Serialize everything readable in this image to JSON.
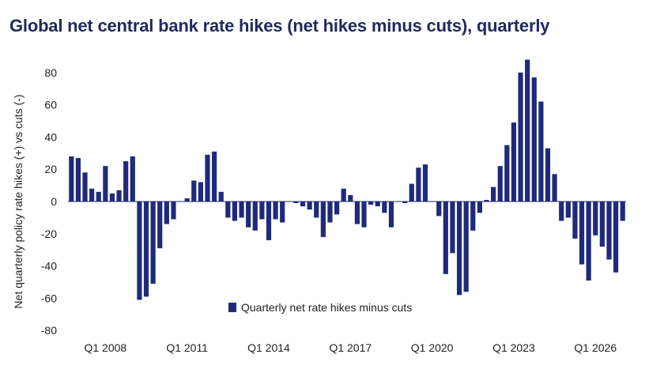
{
  "chart_data": {
    "type": "bar",
    "title": "Global net central bank rate hikes (net hikes minus cuts), quarterly",
    "ylabel": "Net quarterly policy rate hikes (+) vs cuts (-)",
    "xlabel": "",
    "ylim": [
      -80,
      90
    ],
    "yticks": [
      80,
      60,
      40,
      20,
      0,
      -20,
      -40,
      -60,
      -80
    ],
    "xtick_labels": [
      "Q1 2008",
      "Q1 2011",
      "Q1 2014",
      "Q1 2017",
      "Q1 2020",
      "Q1 2023",
      "Q1 2026"
    ],
    "xtick_indices": [
      5,
      17,
      29,
      41,
      53,
      65,
      77
    ],
    "legend": "bottom-center",
    "color": "#1f2a7a",
    "series": [
      {
        "name": "Quarterly net rate hikes minus cuts",
        "values": [
          28,
          27,
          18,
          8,
          6,
          22,
          5,
          7,
          25,
          28,
          -61,
          -59,
          -51,
          -29,
          -14,
          -11,
          0,
          2,
          13,
          12,
          29,
          31,
          6,
          -10,
          -12,
          -10,
          -16,
          -18,
          -11,
          -24,
          -11,
          -13,
          0,
          -1,
          -3,
          -5,
          -10,
          -22,
          -13,
          -8,
          8,
          4,
          -14,
          -16,
          -2,
          -3,
          -7,
          -16,
          0,
          -1,
          11,
          21,
          23,
          0,
          -9,
          -45,
          -32,
          -58,
          -56,
          -18,
          -7,
          1,
          9,
          22,
          35,
          49,
          80,
          88,
          77,
          62,
          33,
          17,
          -12,
          -10,
          -23,
          -39,
          -49,
          -21,
          -28,
          -36,
          -44,
          -12
        ]
      }
    ]
  }
}
